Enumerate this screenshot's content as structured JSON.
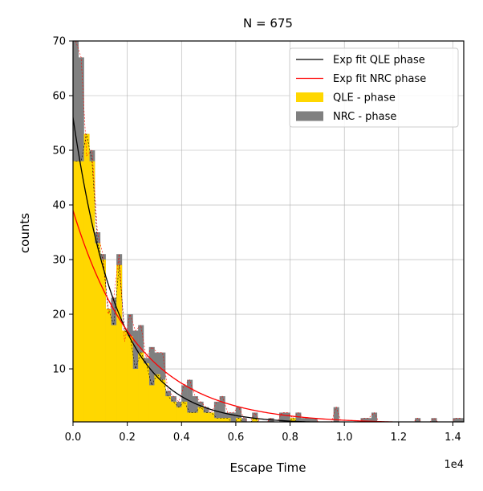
{
  "chart_data": {
    "type": "histogram",
    "title": "N = 675",
    "xlabel": "Escape Time",
    "ylabel": "counts",
    "x_offset_label": "1e4",
    "xlim": [
      0,
      14400
    ],
    "ylim": [
      0.3,
      70
    ],
    "x_ticks": [
      0,
      2000,
      4000,
      6000,
      8000,
      10000,
      12000,
      14000
    ],
    "x_tick_labels": [
      "0.0",
      "0.2",
      "0.4",
      "0.6",
      "0.8",
      "1.0",
      "1.2",
      "1.4"
    ],
    "y_ticks": [
      10,
      20,
      30,
      40,
      50,
      60,
      70
    ],
    "y_tick_labels": [
      "10",
      "20",
      "30",
      "40",
      "50",
      "60",
      "70"
    ],
    "grid": true,
    "legend_position": "top-right",
    "bin_width": 200,
    "bin_starts": [
      0,
      200,
      400,
      600,
      800,
      1000,
      1200,
      1400,
      1600,
      1800,
      2000,
      2200,
      2400,
      2600,
      2800,
      3000,
      3200,
      3400,
      3600,
      3800,
      4000,
      4200,
      4400,
      4600,
      4800,
      5000,
      5200,
      5400,
      5600,
      5800,
      6000,
      6200,
      6400,
      6600,
      6800,
      7000,
      7200,
      7400,
      7600,
      7800,
      8000,
      8200,
      8400,
      8600,
      8800,
      9000,
      9200,
      9400,
      9600,
      9800,
      10000,
      10200,
      10400,
      10600,
      10800,
      11000,
      11200,
      11400,
      11600,
      11800,
      12000,
      12200,
      12400,
      12600,
      12800,
      13000,
      13200,
      13400,
      13600,
      13800,
      14000,
      14200
    ],
    "series": [
      {
        "name": "NRC - phase",
        "color": "#808080",
        "outline_color": "#ff0000",
        "values": [
          70,
          67,
          49,
          50,
          35,
          31,
          20,
          23,
          31,
          15,
          20,
          17,
          18,
          12,
          14,
          13,
          13,
          6,
          5,
          4,
          7,
          8,
          5,
          4,
          3,
          2,
          4,
          5,
          2,
          2,
          3,
          1,
          0,
          2,
          0,
          0,
          1,
          0,
          2,
          2,
          1,
          2,
          1,
          1,
          1,
          0,
          0,
          0,
          3,
          0,
          0,
          0,
          0,
          1,
          1,
          2,
          0,
          0,
          0,
          0,
          0,
          0,
          0,
          1,
          0,
          0,
          1,
          0,
          0,
          0,
          1,
          1
        ]
      },
      {
        "name": "QLE - phase",
        "color": "#ffd700",
        "outline_color": "#000000",
        "values": [
          48,
          48,
          53,
          48,
          33,
          30,
          21,
          18,
          29,
          17,
          16,
          10,
          13,
          11,
          7,
          9,
          8,
          5,
          4,
          3,
          4,
          2,
          2,
          3,
          2,
          2,
          1,
          1,
          1,
          0,
          1,
          0,
          0,
          1,
          0,
          0,
          0,
          0,
          0,
          0,
          1,
          0,
          0,
          0,
          0,
          0,
          0,
          0,
          0,
          0,
          0,
          0,
          0,
          0,
          0,
          0,
          0,
          0,
          0,
          0,
          0,
          0,
          0,
          0,
          0,
          0,
          0,
          0,
          0,
          0,
          0,
          0
        ]
      }
    ],
    "fits": [
      {
        "name": "Exp fit QLE phase",
        "color": "#000000",
        "amplitude": 56,
        "decay": 1650
      },
      {
        "name": "Exp fit NRC phase",
        "color": "#ff0000",
        "amplitude": 39,
        "decay": 2400
      }
    ],
    "legend": [
      {
        "label": "Exp fit QLE phase",
        "kind": "line",
        "color": "#000000"
      },
      {
        "label": "Exp fit NRC phase",
        "kind": "line",
        "color": "#ff0000"
      },
      {
        "label": "QLE - phase",
        "kind": "patch",
        "color": "#ffd700"
      },
      {
        "label": "NRC - phase",
        "kind": "patch",
        "color": "#808080"
      }
    ]
  }
}
